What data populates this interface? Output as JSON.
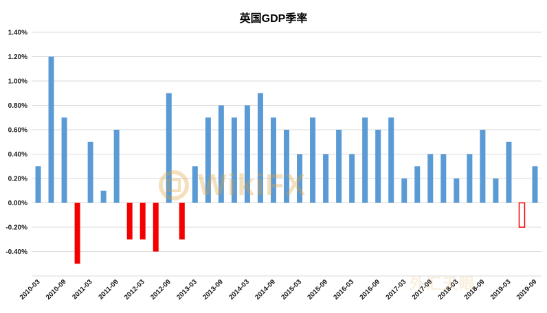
{
  "chart_data": {
    "type": "bar",
    "title": "英国GDP季率",
    "x": [
      "2010-03",
      "2010-06",
      "2010-09",
      "2010-12",
      "2011-03",
      "2011-06",
      "2011-09",
      "2011-12",
      "2012-03",
      "2012-06",
      "2012-09",
      "2012-12",
      "2013-03",
      "2013-06",
      "2013-09",
      "2013-12",
      "2014-03",
      "2014-06",
      "2014-09",
      "2014-12",
      "2015-03",
      "2015-06",
      "2015-09",
      "2015-12",
      "2016-03",
      "2016-06",
      "2016-09",
      "2016-12",
      "2017-03",
      "2017-06",
      "2017-09",
      "2017-12",
      "2018-03",
      "2018-06",
      "2018-09",
      "2018-12",
      "2019-03",
      "2019-06",
      "2019-09"
    ],
    "values": [
      0.3,
      1.2,
      0.7,
      -0.5,
      0.5,
      0.1,
      0.6,
      -0.3,
      -0.3,
      -0.4,
      0.9,
      -0.3,
      0.3,
      0.7,
      0.8,
      0.7,
      0.8,
      0.9,
      0.7,
      0.6,
      0.4,
      0.7,
      0.4,
      0.6,
      0.4,
      0.7,
      0.6,
      0.7,
      0.2,
      0.3,
      0.4,
      0.4,
      0.2,
      0.4,
      0.6,
      0.2,
      0.5,
      -0.2,
      0.3
    ],
    "unit": "%",
    "ylim": [
      -0.6,
      1.4
    ],
    "yticks": [
      {
        "label": "1.40%",
        "value": 1.4
      },
      {
        "label": "1.20%",
        "value": 1.2
      },
      {
        "label": "1.00%",
        "value": 1.0
      },
      {
        "label": "0.80%",
        "value": 0.8
      },
      {
        "label": "0.60%",
        "value": 0.6
      },
      {
        "label": "0.40%",
        "value": 0.4
      },
      {
        "label": "0.20%",
        "value": 0.2
      },
      {
        "label": "0.00%",
        "value": 0.0
      },
      {
        "label": "-0.20%",
        "value": -0.2
      },
      {
        "label": "-0.40%",
        "value": -0.4
      }
    ],
    "x_tick_step": 2,
    "x_tick_labels": [
      "2010-03",
      "2010-09",
      "2011-03",
      "2011-09",
      "2012-03",
      "2012-09",
      "2013-03",
      "2013-09",
      "2014-03",
      "2014-09",
      "2015-03",
      "2015-09",
      "2016-03",
      "2016-09",
      "2017-03",
      "2017-09",
      "2018-03",
      "2018-09",
      "2019-03",
      "2019-09"
    ],
    "bar_color_positive": "#5B9BD5",
    "bar_color_negative": "#F50000",
    "hollow_bar_indices": [
      37
    ],
    "grid": true,
    "legend_position": "none"
  },
  "watermark": {
    "text": "WikiFX",
    "secondary_text": "外汇天眼",
    "color": "#E2A23B"
  }
}
